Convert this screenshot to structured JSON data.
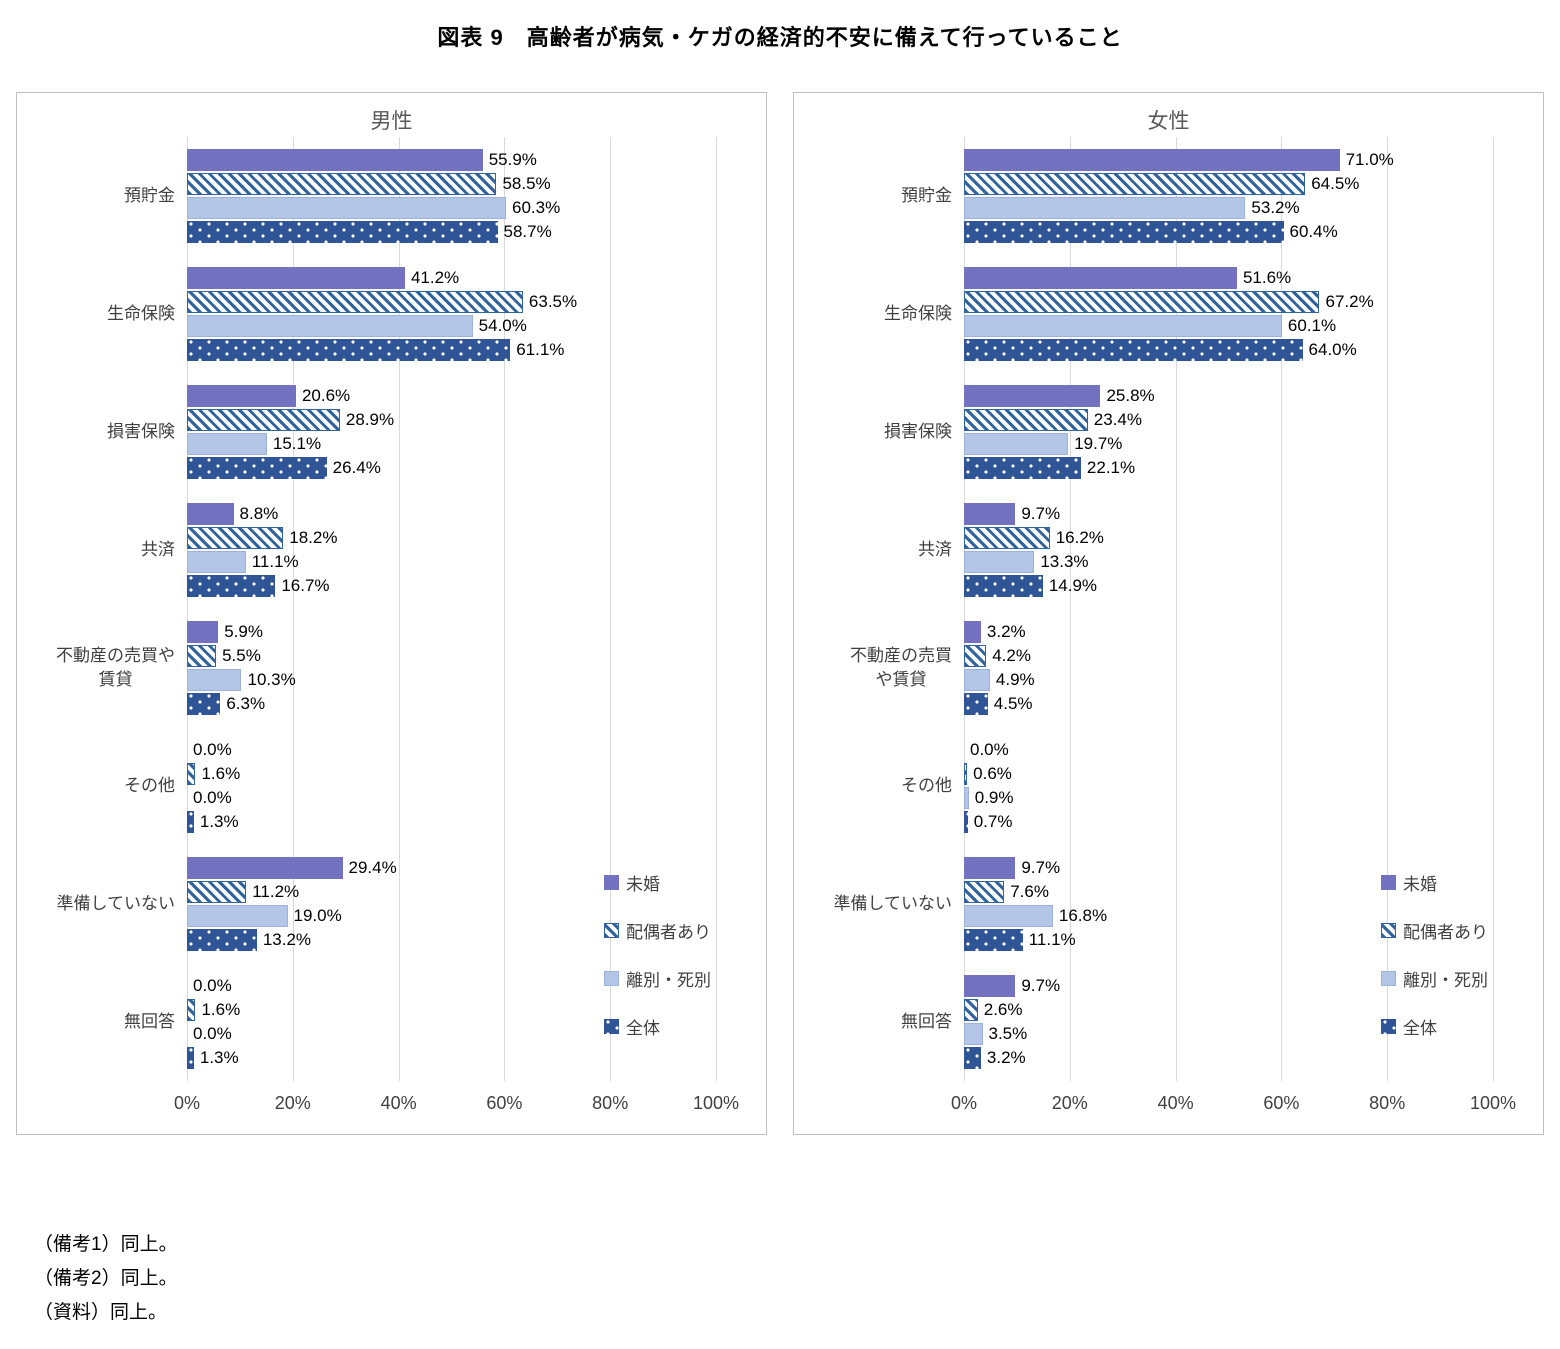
{
  "page_title": "図表 9　高齢者が病気・ケガの経済的不安に備えて行っていること",
  "notes": [
    "（備考1）同上。",
    "（備考2）同上。",
    "（資料）同上。"
  ],
  "series_styles": [
    {
      "name": "未婚",
      "pattern": "solid",
      "fill": "#7372C1"
    },
    {
      "name": "配偶者あり",
      "pattern": "diagonal-stripes",
      "fill": "#31639C",
      "bg": "#FFFFFF"
    },
    {
      "name": "離別・死別",
      "pattern": "solid",
      "fill": "#B4C6E7",
      "border": "#9DB2D9"
    },
    {
      "name": "全体",
      "pattern": "white-dots",
      "fill": "#2F5597"
    }
  ],
  "axis": {
    "xticks": [
      "0%",
      "20%",
      "40%",
      "60%",
      "80%",
      "100%"
    ],
    "xlim": [
      0,
      100
    ],
    "grid": true
  },
  "chart_data": [
    {
      "type": "bar",
      "orientation": "horizontal",
      "title": "男性",
      "legend_position": "inside-lower-right",
      "xlim": [
        0,
        100
      ],
      "categories": [
        "預貯金",
        "生命保険",
        "損害保険",
        "共済",
        "不動産の売買や\n賃貸",
        "その他",
        "準備していない",
        "無回答"
      ],
      "series": [
        {
          "name": "未婚",
          "values": [
            55.9,
            41.2,
            20.6,
            8.8,
            5.9,
            0.0,
            29.4,
            0.0
          ]
        },
        {
          "name": "配偶者あり",
          "values": [
            58.5,
            63.5,
            28.9,
            18.2,
            5.5,
            1.6,
            11.2,
            1.6
          ]
        },
        {
          "name": "離別・死別",
          "values": [
            60.3,
            54.0,
            15.1,
            11.1,
            10.3,
            0.0,
            19.0,
            0.0
          ]
        },
        {
          "name": "全体",
          "values": [
            58.7,
            61.1,
            26.4,
            16.7,
            6.3,
            1.3,
            13.2,
            1.3
          ]
        }
      ]
    },
    {
      "type": "bar",
      "orientation": "horizontal",
      "title": "女性",
      "legend_position": "inside-lower-right",
      "xlim": [
        0,
        100
      ],
      "categories": [
        "預貯金",
        "生命保険",
        "損害保険",
        "共済",
        "不動産の売買\nや賃貸",
        "その他",
        "準備していない",
        "無回答"
      ],
      "series": [
        {
          "name": "未婚",
          "values": [
            71.0,
            51.6,
            25.8,
            9.7,
            3.2,
            0.0,
            9.7,
            9.7
          ]
        },
        {
          "name": "配偶者あり",
          "values": [
            64.5,
            67.2,
            23.4,
            16.2,
            4.2,
            0.6,
            7.6,
            2.6
          ]
        },
        {
          "name": "離別・死別",
          "values": [
            53.2,
            60.1,
            19.7,
            13.3,
            4.9,
            0.9,
            16.8,
            3.5
          ]
        },
        {
          "name": "全体",
          "values": [
            60.4,
            64.0,
            22.1,
            14.9,
            4.5,
            0.7,
            11.1,
            3.2
          ]
        }
      ]
    }
  ]
}
